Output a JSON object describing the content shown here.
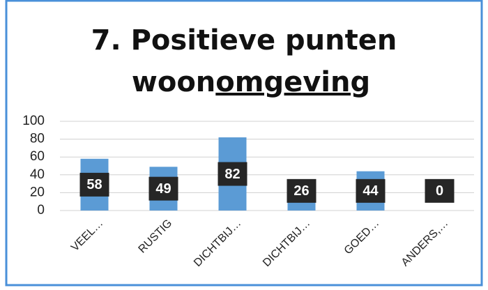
{
  "chart_data": {
    "type": "bar",
    "title": {
      "line1": "7. Positieve punten",
      "line2": "woon",
      "line2_underlined": "omgeving"
    },
    "categories": [
      "VEEL…",
      "RUSTIG",
      "DICHTBIJ…",
      "DICHTBIJ…",
      "GOED…",
      "ANDERS,…"
    ],
    "values": [
      58,
      49,
      82,
      26,
      44,
      0
    ],
    "color": "#5b9bd5",
    "ylim": [
      0,
      100
    ],
    "yticks": [
      0,
      20,
      40,
      60,
      80,
      100
    ],
    "grid": true,
    "data_labels": true
  }
}
